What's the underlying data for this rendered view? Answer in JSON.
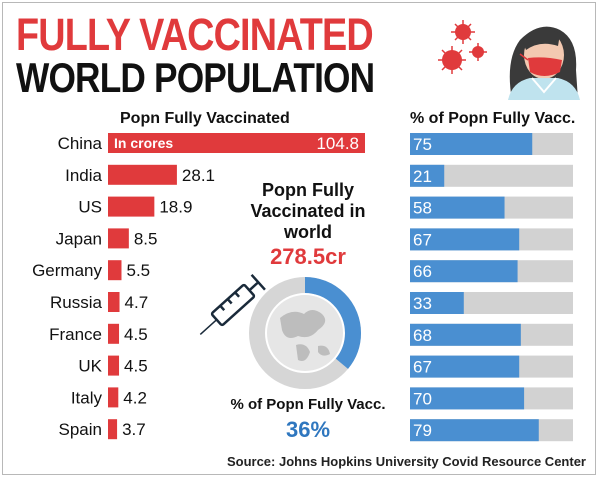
{
  "title_line1": "FULLY VACCINATED",
  "title_line2": "WORLD POPULATION",
  "left_header": "Popn Fully Vaccinated",
  "right_header": "% of Popn Fully Vacc.",
  "unit_note": "In crores",
  "center": {
    "label": "Popn Fully Vaccinated in world",
    "value": "278.5cr",
    "pct_label": "% of Popn Fully Vacc.",
    "pct_value": "36%"
  },
  "source": "Source: Johns Hopkins University Covid Resource Center",
  "colors": {
    "red": "#e03a3c",
    "blue": "#4a8fd1",
    "grey_track": "#d2d2d2",
    "dark_blue": "#2f77bf"
  },
  "icons": [
    "woman-with-mask-icon",
    "virus-icon",
    "syringe-icon",
    "globe-icon"
  ],
  "chart_data": [
    {
      "type": "bar",
      "title": "Popn Fully Vaccinated",
      "unit": "In crores",
      "categories": [
        "China",
        "India",
        "US",
        "Japan",
        "Germany",
        "Russia",
        "France",
        "UK",
        "Italy",
        "Spain"
      ],
      "values": [
        104.8,
        28.1,
        18.9,
        8.5,
        5.5,
        4.7,
        4.5,
        4.5,
        4.2,
        3.7
      ]
    },
    {
      "type": "bar",
      "title": "% of Popn Fully Vacc.",
      "categories": [
        "China",
        "India",
        "US",
        "Japan",
        "Germany",
        "Russia",
        "France",
        "UK",
        "Italy",
        "Spain"
      ],
      "values": [
        75,
        21,
        58,
        67,
        66,
        33,
        68,
        67,
        70,
        79
      ],
      "ylim": [
        0,
        100
      ]
    },
    {
      "type": "pie",
      "title": "% of Popn Fully Vacc.",
      "values": [
        36,
        64
      ],
      "total_label": "278.5cr"
    }
  ]
}
